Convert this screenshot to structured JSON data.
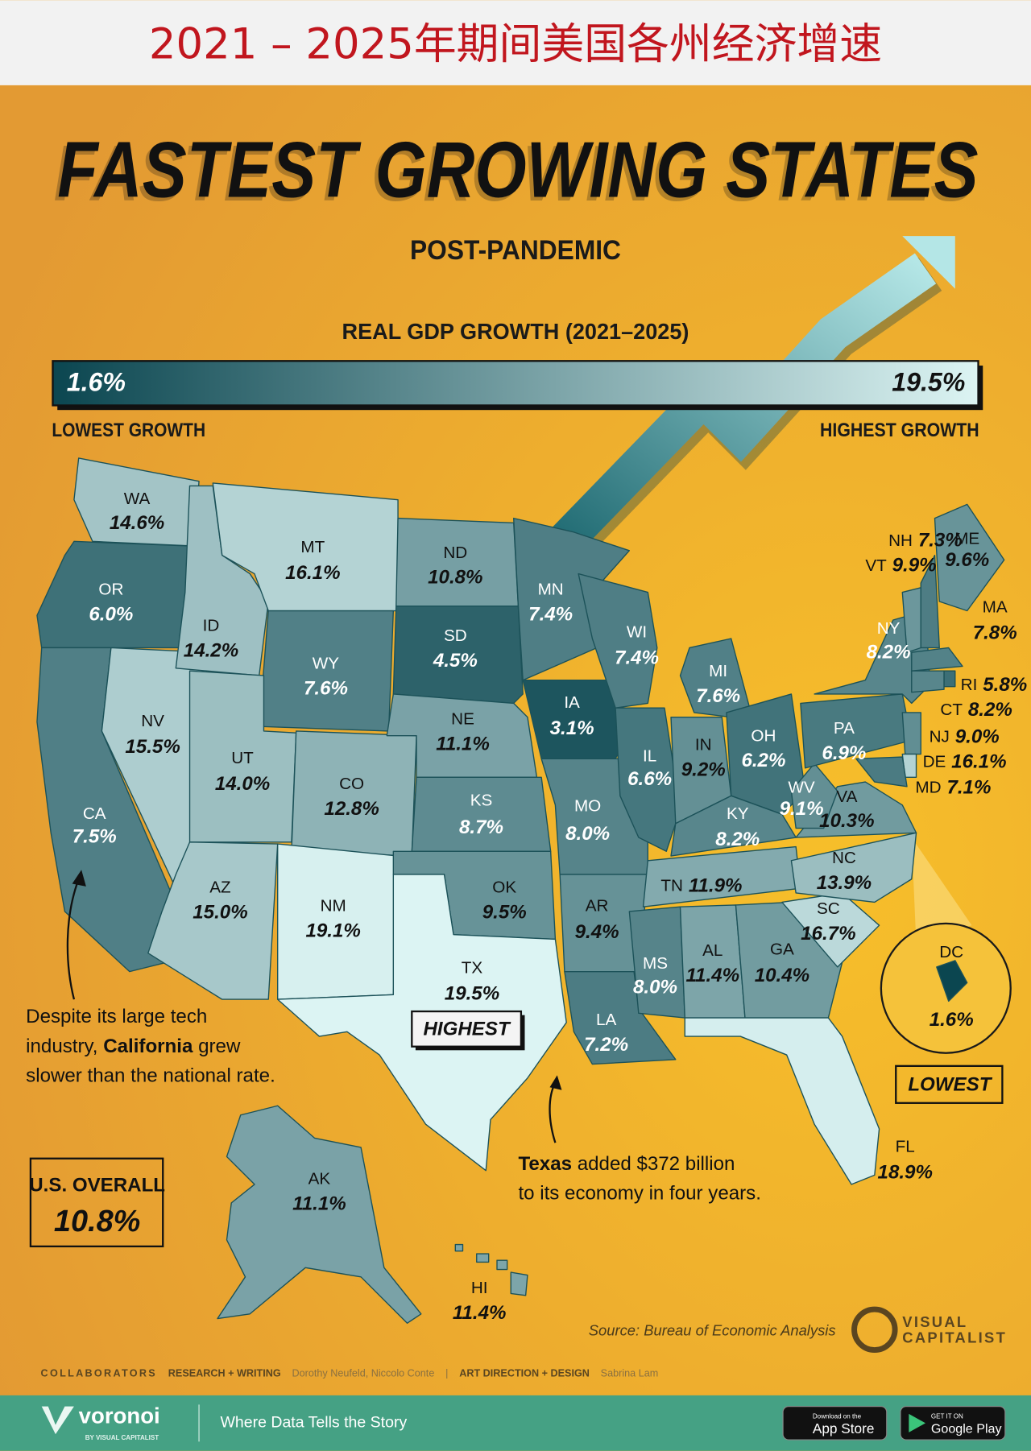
{
  "header": {
    "title": "2021 – 2025年期间美国各州经济增速"
  },
  "title": "FASTEST GROWING STATES",
  "subtitle": "POST-PANDEMIC",
  "legend": {
    "title": "REAL GDP GROWTH (2021–2025)",
    "min": {
      "value": 1.6,
      "label": "1.6%"
    },
    "max": {
      "value": 19.5,
      "label": "19.5%"
    },
    "min_caption": "LOWEST GROWTH",
    "max_caption": "HIGHEST GROWTH",
    "min_color": "#0b4650",
    "max_color": "#dcf4f3"
  },
  "states": [
    {
      "abbr": "WA",
      "value": 14.6,
      "label": "14.6%"
    },
    {
      "abbr": "OR",
      "value": 6.0,
      "label": "6.0%"
    },
    {
      "abbr": "CA",
      "value": 7.5,
      "label": "7.5%"
    },
    {
      "abbr": "NV",
      "value": 15.5,
      "label": "15.5%"
    },
    {
      "abbr": "ID",
      "value": 14.2,
      "label": "14.2%"
    },
    {
      "abbr": "MT",
      "value": 16.1,
      "label": "16.1%"
    },
    {
      "abbr": "WY",
      "value": 7.6,
      "label": "7.6%"
    },
    {
      "abbr": "UT",
      "value": 14.0,
      "label": "14.0%"
    },
    {
      "abbr": "CO",
      "value": 12.8,
      "label": "12.8%"
    },
    {
      "abbr": "AZ",
      "value": 15.0,
      "label": "15.0%"
    },
    {
      "abbr": "NM",
      "value": 19.1,
      "label": "19.1%"
    },
    {
      "abbr": "ND",
      "value": 10.8,
      "label": "10.8%"
    },
    {
      "abbr": "SD",
      "value": 4.5,
      "label": "4.5%"
    },
    {
      "abbr": "NE",
      "value": 11.1,
      "label": "11.1%"
    },
    {
      "abbr": "KS",
      "value": 8.7,
      "label": "8.7%"
    },
    {
      "abbr": "OK",
      "value": 9.5,
      "label": "9.5%"
    },
    {
      "abbr": "TX",
      "value": 19.5,
      "label": "19.5%"
    },
    {
      "abbr": "MN",
      "value": 7.4,
      "label": "7.4%"
    },
    {
      "abbr": "IA",
      "value": 3.1,
      "label": "3.1%"
    },
    {
      "abbr": "MO",
      "value": 8.0,
      "label": "8.0%"
    },
    {
      "abbr": "AR",
      "value": 9.4,
      "label": "9.4%"
    },
    {
      "abbr": "LA",
      "value": 7.2,
      "label": "7.2%"
    },
    {
      "abbr": "WI",
      "value": 7.4,
      "label": "7.4%"
    },
    {
      "abbr": "IL",
      "value": 6.6,
      "label": "6.6%"
    },
    {
      "abbr": "MI",
      "value": 7.6,
      "label": "7.6%"
    },
    {
      "abbr": "IN",
      "value": 9.2,
      "label": "9.2%"
    },
    {
      "abbr": "OH",
      "value": 6.2,
      "label": "6.2%"
    },
    {
      "abbr": "KY",
      "value": 8.2,
      "label": "8.2%"
    },
    {
      "abbr": "TN",
      "value": 11.9,
      "label": "11.9%"
    },
    {
      "abbr": "MS",
      "value": 8.0,
      "label": "8.0%"
    },
    {
      "abbr": "AL",
      "value": 11.4,
      "label": "11.4%"
    },
    {
      "abbr": "GA",
      "value": 10.4,
      "label": "10.4%"
    },
    {
      "abbr": "FL",
      "value": 18.9,
      "label": "18.9%"
    },
    {
      "abbr": "SC",
      "value": 16.7,
      "label": "16.7%"
    },
    {
      "abbr": "NC",
      "value": 13.9,
      "label": "13.9%"
    },
    {
      "abbr": "VA",
      "value": 10.3,
      "label": "10.3%"
    },
    {
      "abbr": "WV",
      "value": 9.1,
      "label": "9.1%"
    },
    {
      "abbr": "PA",
      "value": 6.9,
      "label": "6.9%"
    },
    {
      "abbr": "NY",
      "value": 8.2,
      "label": "8.2%"
    },
    {
      "abbr": "VT",
      "value": 9.9,
      "label": "9.9%"
    },
    {
      "abbr": "NH",
      "value": 7.3,
      "label": "7.3%"
    },
    {
      "abbr": "ME",
      "value": 9.6,
      "label": "9.6%"
    },
    {
      "abbr": "MA",
      "value": 7.8,
      "label": "7.8%"
    },
    {
      "abbr": "RI",
      "value": 5.8,
      "label": "5.8%"
    },
    {
      "abbr": "CT",
      "value": 8.2,
      "label": "8.2%"
    },
    {
      "abbr": "NJ",
      "value": 9.0,
      "label": "9.0%"
    },
    {
      "abbr": "DE",
      "value": 16.1,
      "label": "16.1%"
    },
    {
      "abbr": "MD",
      "value": 7.1,
      "label": "7.1%"
    },
    {
      "abbr": "DC",
      "value": 1.6,
      "label": "1.6%"
    },
    {
      "abbr": "AK",
      "value": 11.1,
      "label": "11.1%"
    },
    {
      "abbr": "HI",
      "value": 11.4,
      "label": "11.4%"
    }
  ],
  "badges": {
    "highest": "HIGHEST",
    "lowest": "LOWEST"
  },
  "california_note": {
    "lines": [
      [
        "Despite its large tech"
      ],
      [
        "industry, ",
        "California",
        " grew"
      ],
      [
        "slower than the national rate."
      ]
    ]
  },
  "texas_note": {
    "lines": [
      [
        "Texas",
        " added $372 billion"
      ],
      [
        "to its economy in four years."
      ]
    ]
  },
  "overall": {
    "label": "U.S. OVERALL",
    "value": "10.8%"
  },
  "source": "Source: Bureau of Economic Analysis",
  "brand": [
    "VISUAL",
    "CAPITALIST"
  ],
  "credits": [
    "COLLABORATORS",
    "RESEARCH + WRITING",
    "Dorothy Neufeld, Niccolo Conte",
    "|",
    "ART DIRECTION + DESIGN",
    "Sabrina Lam"
  ],
  "footer": {
    "logo": "voronoi",
    "byline": "BY VISUAL CAPITALIST",
    "tagline": "Where Data Tells the Story",
    "app_store": [
      "Download on the",
      "App Store"
    ],
    "google_play": [
      "GET IT ON",
      "Google Play"
    ]
  }
}
